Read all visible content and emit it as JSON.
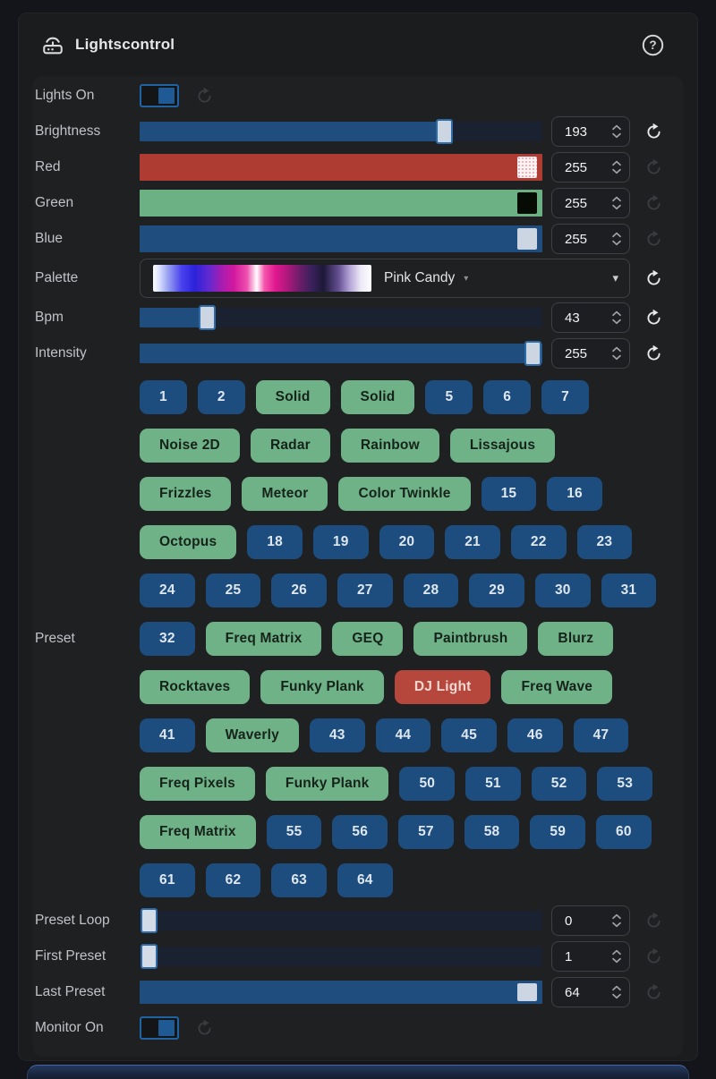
{
  "header": {
    "title": "Lightscontrol",
    "icon": "wireless-remote",
    "help": "help"
  },
  "colors": {
    "blue": "#1e4d7e",
    "green": "#6fb287",
    "red": "#b5473c",
    "card_bg": "#1b1c1e",
    "track": "#1a2130",
    "accent_border": "#2063a3"
  },
  "rows": {
    "lights_on": {
      "label": "Lights On",
      "state": "on"
    },
    "brightness": {
      "label": "Brightness",
      "value": "193",
      "fill": "75.7%",
      "reset": "active"
    },
    "red": {
      "label": "Red",
      "value": "255",
      "fill": "100%",
      "reset": "inactive"
    },
    "green": {
      "label": "Green",
      "value": "255",
      "fill": "100%",
      "reset": "inactive"
    },
    "blue": {
      "label": "Blue",
      "value": "255",
      "fill": "100%",
      "reset": "inactive"
    },
    "palette": {
      "label": "Palette",
      "selected": "Pink Candy",
      "reset": "active"
    },
    "bpm": {
      "label": "Bpm",
      "value": "43",
      "fill": "16.9%",
      "reset": "active"
    },
    "intensity": {
      "label": "Intensity",
      "value": "255",
      "fill": "100%",
      "reset": "active"
    },
    "preset": {
      "label": "Preset"
    },
    "preset_loop": {
      "label": "Preset Loop",
      "value": "0",
      "fill": "0%",
      "reset": "inactive"
    },
    "first_preset": {
      "label": "First Preset",
      "value": "1",
      "fill": "0%",
      "reset": "inactive"
    },
    "last_preset": {
      "label": "Last Preset",
      "value": "64",
      "fill": "100%",
      "reset": "inactive"
    },
    "monitor_on": {
      "label": "Monitor On",
      "state": "on"
    }
  },
  "preset_grid": {
    "rows": [
      [
        {
          "label": "1",
          "style": "blue"
        },
        {
          "label": "2",
          "style": "blue"
        },
        {
          "label": "Solid",
          "style": "green"
        },
        {
          "label": "Solid",
          "style": "green"
        },
        {
          "label": "5",
          "style": "blue"
        },
        {
          "label": "6",
          "style": "blue"
        },
        {
          "label": "7",
          "style": "blue"
        }
      ],
      [
        {
          "label": "Noise 2D",
          "style": "green"
        },
        {
          "label": "Radar",
          "style": "green"
        },
        {
          "label": "Rainbow",
          "style": "green"
        },
        {
          "label": "Lissajous",
          "style": "green"
        }
      ],
      [
        {
          "label": "Frizzles",
          "style": "green"
        },
        {
          "label": "Meteor",
          "style": "green"
        },
        {
          "label": "Color Twinkle",
          "style": "green"
        },
        {
          "label": "15",
          "style": "blue"
        },
        {
          "label": "16",
          "style": "blue"
        }
      ],
      [
        {
          "label": "Octopus",
          "style": "green"
        },
        {
          "label": "18",
          "style": "blue"
        },
        {
          "label": "19",
          "style": "blue"
        },
        {
          "label": "20",
          "style": "blue"
        },
        {
          "label": "21",
          "style": "blue"
        },
        {
          "label": "22",
          "style": "blue"
        },
        {
          "label": "23",
          "style": "blue"
        }
      ],
      [
        {
          "label": "24",
          "style": "blue"
        },
        {
          "label": "25",
          "style": "blue"
        },
        {
          "label": "26",
          "style": "blue"
        },
        {
          "label": "27",
          "style": "blue"
        },
        {
          "label": "28",
          "style": "blue"
        },
        {
          "label": "29",
          "style": "blue"
        },
        {
          "label": "30",
          "style": "blue"
        },
        {
          "label": "31",
          "style": "blue"
        }
      ],
      [
        {
          "label": "32",
          "style": "blue"
        },
        {
          "label": "Freq Matrix",
          "style": "green"
        },
        {
          "label": "GEQ",
          "style": "green"
        },
        {
          "label": "Paintbrush",
          "style": "green"
        },
        {
          "label": "Blurz",
          "style": "green"
        }
      ],
      [
        {
          "label": "Rocktaves",
          "style": "green"
        },
        {
          "label": "Funky Plank",
          "style": "green"
        },
        {
          "label": "DJ Light",
          "style": "red"
        },
        {
          "label": "Freq Wave",
          "style": "green"
        }
      ],
      [
        {
          "label": "41",
          "style": "blue"
        },
        {
          "label": "Waverly",
          "style": "green"
        },
        {
          "label": "43",
          "style": "blue"
        },
        {
          "label": "44",
          "style": "blue"
        },
        {
          "label": "45",
          "style": "blue"
        },
        {
          "label": "46",
          "style": "blue"
        },
        {
          "label": "47",
          "style": "blue"
        }
      ],
      [
        {
          "label": "Freq Pixels",
          "style": "green"
        },
        {
          "label": "Funky Plank",
          "style": "green"
        },
        {
          "label": "50",
          "style": "blue"
        },
        {
          "label": "51",
          "style": "blue"
        },
        {
          "label": "52",
          "style": "blue"
        },
        {
          "label": "53",
          "style": "blue"
        }
      ],
      [
        {
          "label": "Freq Matrix",
          "style": "green"
        },
        {
          "label": "55",
          "style": "blue"
        },
        {
          "label": "56",
          "style": "blue"
        },
        {
          "label": "57",
          "style": "blue"
        },
        {
          "label": "58",
          "style": "blue"
        },
        {
          "label": "59",
          "style": "blue"
        },
        {
          "label": "60",
          "style": "blue"
        }
      ],
      [
        {
          "label": "61",
          "style": "blue"
        },
        {
          "label": "62",
          "style": "blue"
        },
        {
          "label": "63",
          "style": "blue"
        },
        {
          "label": "64",
          "style": "blue"
        }
      ]
    ]
  }
}
